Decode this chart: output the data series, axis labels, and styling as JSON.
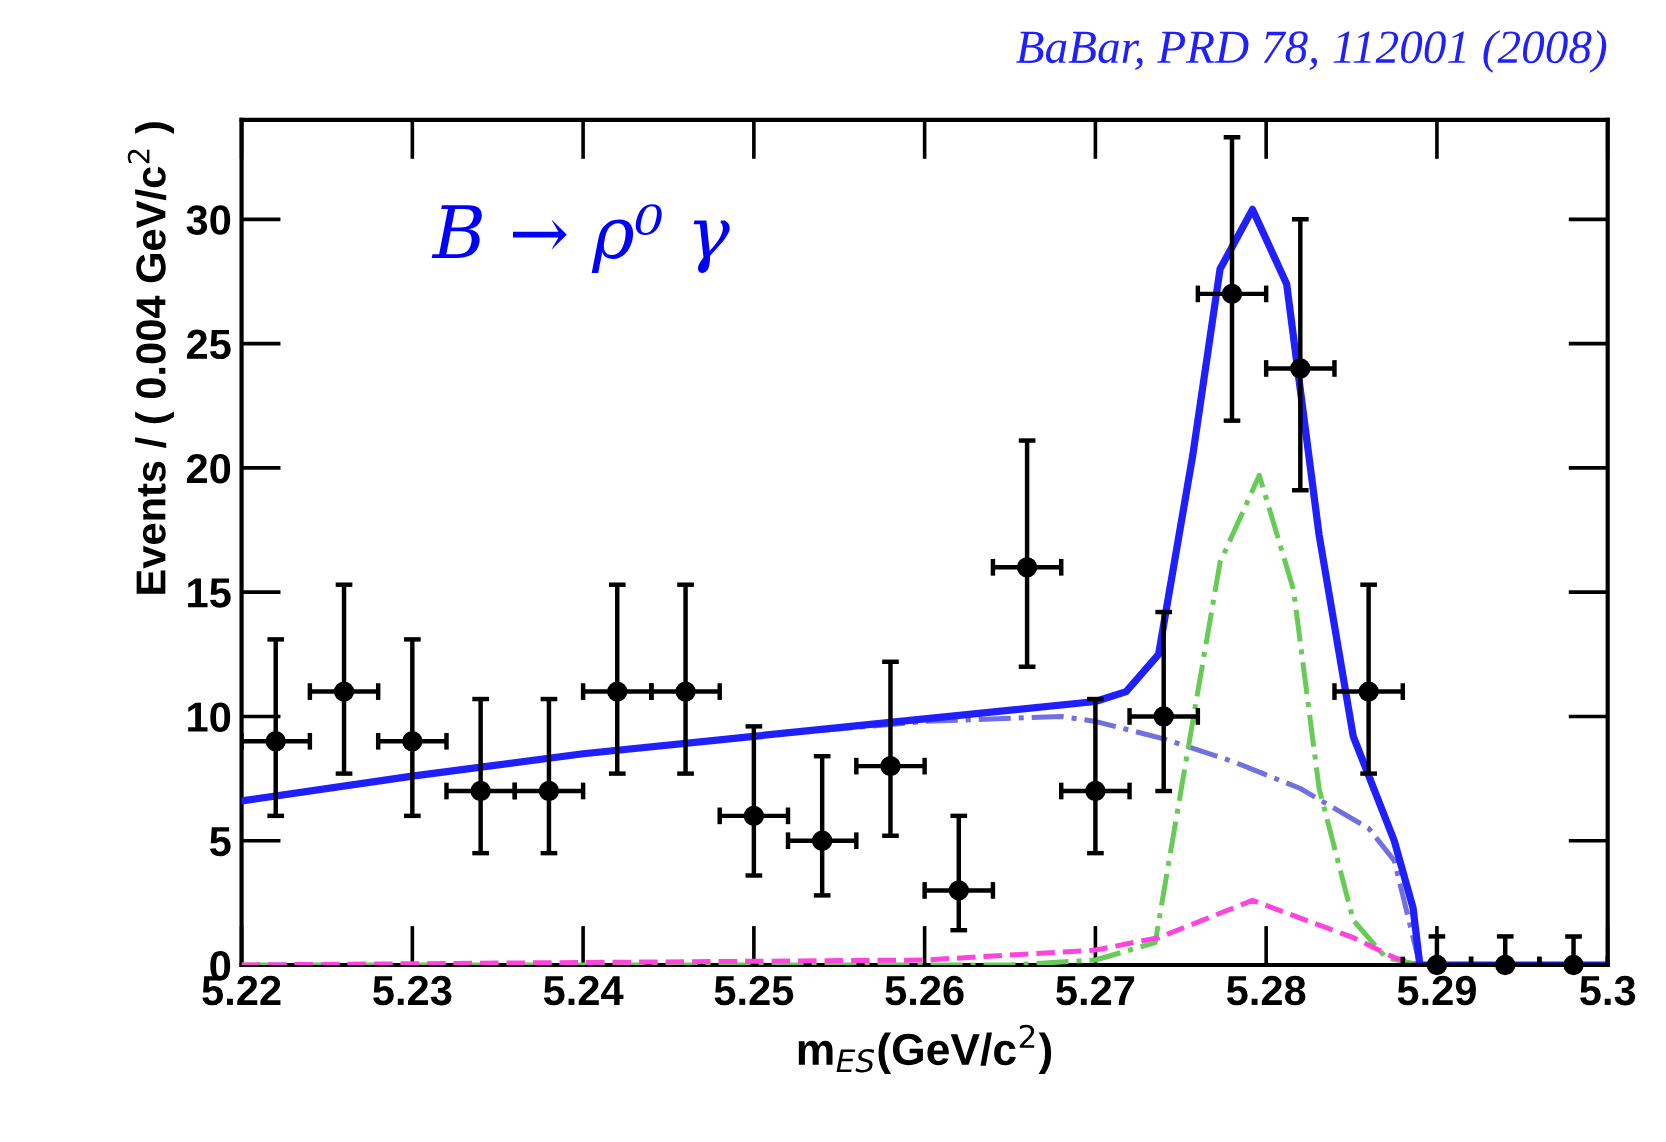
{
  "chart_data": {
    "type": "scatter",
    "xlabel": "m$_{ES}$(GeV/c$^{2}$)",
    "ylabel": "Events / ( 0.004 GeV/c$^{2}$ )",
    "annotations": [
      "BaBar, PRD 78, 112001 (2008)",
      "B → ρ⁰ γ"
    ],
    "xlim": [
      5.22,
      5.3
    ],
    "xticks": [
      5.22,
      5.23,
      5.24,
      5.25,
      5.26,
      5.27,
      5.28,
      5.29,
      {
        "value": 5.3,
        "label": "5.3"
      }
    ],
    "ylim": [
      0,
      34
    ],
    "yticks": [
      0,
      5,
      10,
      15,
      20,
      25,
      30
    ],
    "series": [
      {
        "type": "line",
        "color": "#7070e0",
        "line_style": "dotted",
        "marker": "none",
        "x": [
          5.22,
          5.23,
          5.24,
          5.25,
          5.26,
          5.268,
          5.27,
          5.274,
          5.278,
          5.282,
          5.286,
          5.2875,
          5.289,
          5.3
        ],
        "values": [
          6.6,
          7.6,
          8.5,
          9.2,
          9.8,
          10,
          9.8,
          9.1,
          8.2,
          7.1,
          5.5,
          4.2,
          0,
          0
        ]
      },
      {
        "type": "line",
        "color": "#66cc55",
        "line_style": "dotted",
        "marker": "none",
        "x": [
          5.22,
          5.265,
          5.27,
          5.2735,
          5.2757,
          5.2773,
          5.2796,
          5.2816,
          5.2831,
          5.2851,
          5.287,
          5.289,
          5.3
        ],
        "values": [
          0,
          0,
          0.2,
          0.9,
          9.8,
          16.2,
          19.7,
          15.1,
          7.1,
          1.8,
          0.3,
          0,
          0
        ]
      },
      {
        "type": "line",
        "color": "#ff44dd",
        "line_style": "dashed",
        "marker": "none",
        "x": [
          5.22,
          5.26,
          5.27,
          5.2737,
          5.2792,
          5.2851,
          5.2875,
          5.289,
          5.3
        ],
        "values": [
          0,
          0.2,
          0.6,
          1.1,
          2.6,
          1.1,
          0.3,
          0,
          0
        ]
      },
      {
        "type": "line",
        "color": "#1f1fff",
        "line_style": "solid",
        "marker": "none",
        "x": [
          5.22,
          5.23,
          5.24,
          5.25,
          5.26,
          5.27,
          5.2718,
          5.2737,
          5.2757,
          5.2773,
          5.2792,
          5.2812,
          5.2831,
          5.2851,
          5.2875,
          5.2886,
          5.289,
          5.3
        ],
        "values": [
          6.6,
          7.6,
          8.5,
          9.2,
          9.9,
          10.6,
          11,
          12.5,
          20.5,
          28,
          30.4,
          27.4,
          17.3,
          9.2,
          5.0,
          2.3,
          0,
          0
        ]
      },
      {
        "color": "#000000",
        "marker": "circle",
        "x": [
          5.222,
          5.226,
          5.23,
          5.234,
          5.238,
          5.242,
          5.246,
          5.25,
          5.254,
          5.258,
          5.262,
          5.266,
          5.27,
          5.274,
          5.278,
          5.282,
          5.286,
          5.29,
          5.294,
          5.298
        ],
        "values": [
          9,
          11,
          9,
          7,
          7,
          11,
          11,
          6,
          5,
          8,
          3,
          16,
          7,
          10,
          27,
          24,
          11,
          0,
          0,
          0
        ],
        "errors": [
          [
            6,
            13.1
          ],
          [
            7.7,
            15.3
          ],
          [
            6,
            13.1
          ],
          [
            4.5,
            10.7
          ],
          [
            4.5,
            10.7
          ],
          [
            7.7,
            15.3
          ],
          [
            7.7,
            15.3
          ],
          [
            3.6,
            9.6
          ],
          [
            2.8,
            8.4
          ],
          [
            5.2,
            12.2
          ],
          [
            1.4,
            6.0
          ],
          [
            12,
            21.1
          ],
          [
            4.5,
            10.7
          ],
          [
            7,
            14.2
          ],
          [
            21.9,
            33.3
          ],
          [
            19.1,
            30
          ],
          [
            7.7,
            15.3
          ],
          [
            0,
            1.15
          ],
          [
            0,
            1.15
          ],
          [
            0,
            1.15
          ]
        ],
        "xerrors": [
          0.002,
          0.002,
          0.002,
          0.002,
          0.002,
          0.002,
          0.002,
          0.002,
          0.002,
          0.002,
          0.002,
          0.002,
          0.002,
          0.002,
          0.002,
          0.002,
          0.002,
          0.002,
          0.002,
          0.002
        ]
      }
    ]
  }
}
